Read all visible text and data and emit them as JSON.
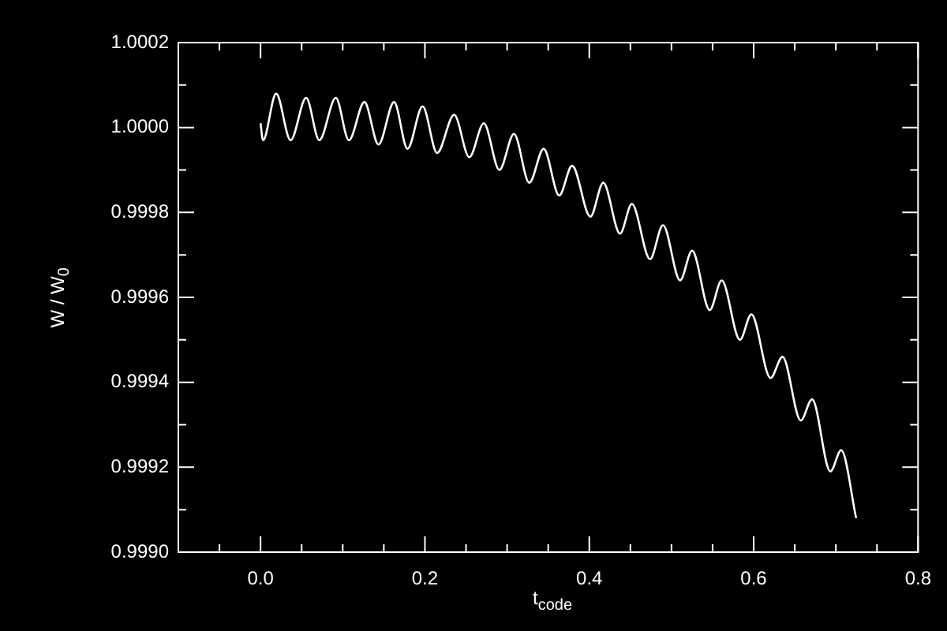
{
  "chart_data": {
    "type": "line",
    "xlabel": "t$_{code}$",
    "ylabel": "W / W$_{0}$",
    "x": [
      0,
      0.003,
      0.019,
      0.0366,
      0.0555,
      0.0715,
      0.0916,
      0.1075,
      0.1264,
      0.1435,
      0.1625,
      0.1788,
      0.1972,
      0.2148,
      0.2356,
      0.254,
      0.2717,
      0.2906,
      0.3084,
      0.327,
      0.3445,
      0.3634,
      0.3791,
      0.4013,
      0.417,
      0.4374,
      0.4518,
      0.4739,
      0.4897,
      0.5105,
      0.5251,
      0.5465,
      0.5611,
      0.5833,
      0.5972,
      0.6205,
      0.6351,
      0.6573,
      0.6711,
      0.6933,
      0.7065,
      0.7247
    ],
    "series": [
      {
        "color": "#ffffff",
        "values": [
          1.00001,
          0.99997,
          1.00008,
          0.99997,
          1.00007,
          0.99997,
          1.00007,
          0.99997,
          1.00006,
          0.99996,
          1.00006,
          0.99995,
          1.00005,
          0.99994,
          1.00003,
          0.99993,
          1.00001,
          0.9999,
          0.999985,
          0.99987,
          0.99995,
          0.99984,
          0.99991,
          0.99979,
          0.99987,
          0.99975,
          0.99982,
          0.99969,
          0.99977,
          0.99964,
          0.99971,
          0.99957,
          0.99964,
          0.9995,
          0.99956,
          0.99941,
          0.99946,
          0.99931,
          0.99936,
          0.99919,
          0.99924,
          0.99908
        ]
      }
    ],
    "xlim": [
      -0.1,
      0.8
    ],
    "xticks": [
      {
        "value": 0,
        "label": "0.0"
      },
      0.2,
      0.4,
      0.6,
      0.8
    ],
    "ylim": [
      0.999,
      1.0002
    ],
    "yticks": [
      {
        "value": 0.999,
        "label": "0.9990"
      },
      {
        "value": 0.9992,
        "label": "0.9992"
      },
      {
        "value": 0.9994,
        "label": "0.9994"
      },
      {
        "value": 0.9996,
        "label": "0.9996"
      },
      {
        "value": 0.9998,
        "label": "0.9998"
      },
      {
        "value": 1,
        "label": "1.0000"
      },
      {
        "value": 1.0002,
        "label": "1.0002"
      }
    ],
    "grid": false,
    "legend": false,
    "marker": "none",
    "line_style": "solid"
  }
}
